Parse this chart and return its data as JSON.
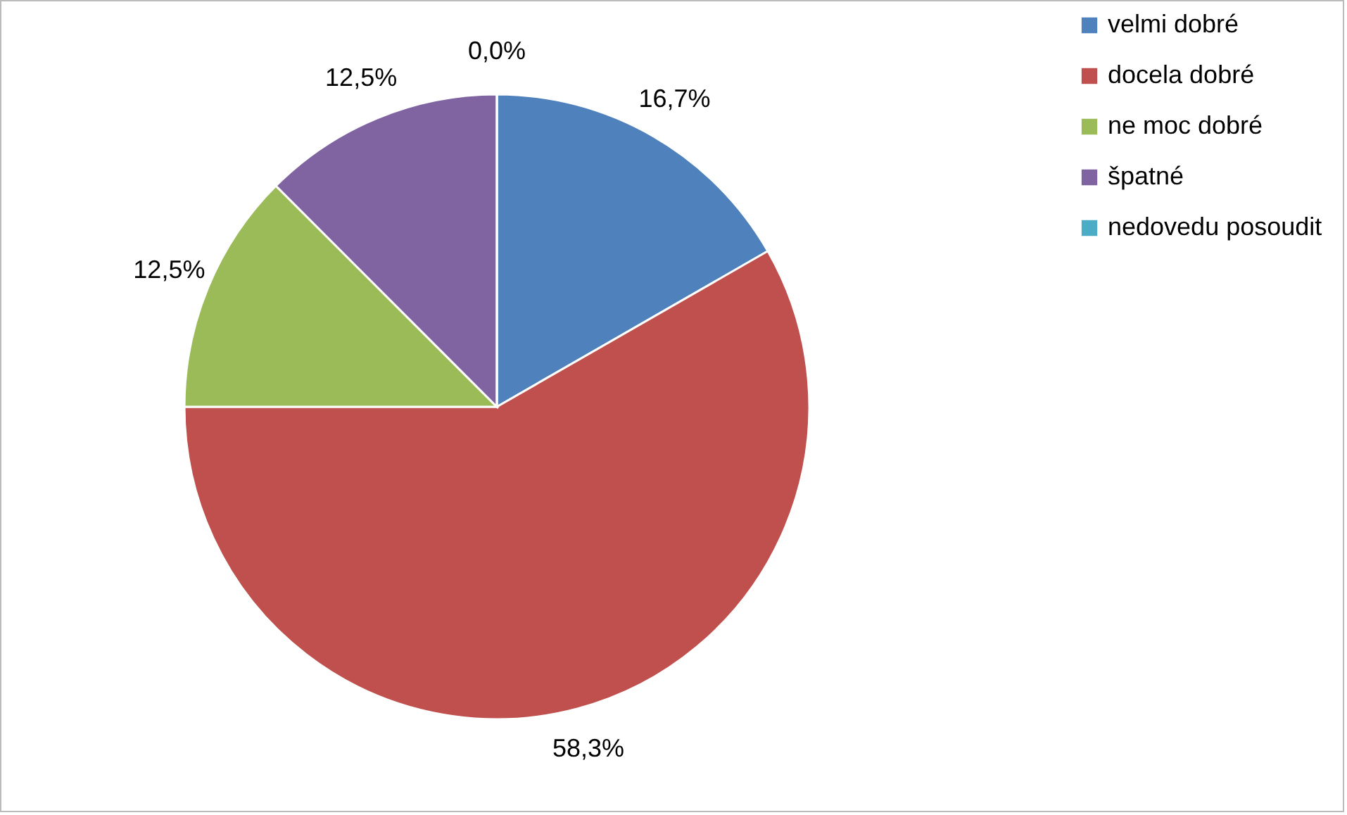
{
  "chart_data": {
    "type": "pie",
    "categories": [
      "velmi dobré",
      "docela dobré",
      "ne moc dobré",
      "špatné",
      "nedovedu posoudit"
    ],
    "values": [
      16.7,
      58.3,
      12.5,
      12.5,
      0.0
    ],
    "value_labels": [
      "16,7%",
      "58,3%",
      "12,5%",
      "12,5%",
      "0,0%"
    ],
    "colors": [
      "#4f81bd",
      "#c0504d",
      "#9bbb59",
      "#8064a2",
      "#4bacc6"
    ],
    "legend": "right"
  }
}
